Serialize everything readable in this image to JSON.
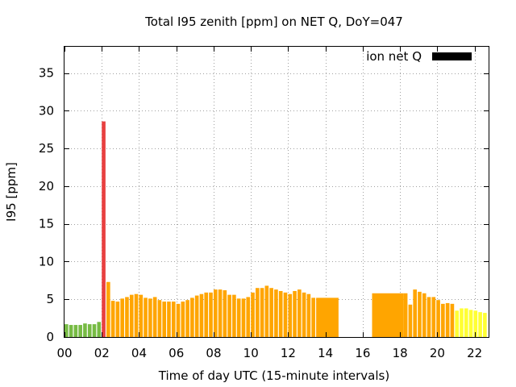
{
  "chart_data": {
    "type": "bar",
    "title": "Total I95 zenith [ppm] on NET Q, DoY=047",
    "xlabel": "Time of day UTC (15-minute intervals)",
    "ylabel": "I95 [ppm]",
    "xlim": [
      0,
      22.75
    ],
    "ylim": [
      0,
      38.5
    ],
    "x_ticks": [
      {
        "v": 0,
        "label": "00"
      },
      {
        "v": 2,
        "label": "02"
      },
      {
        "v": 4,
        "label": "04"
      },
      {
        "v": 6,
        "label": "06"
      },
      {
        "v": 8,
        "label": "08"
      },
      {
        "v": 10,
        "label": "10"
      },
      {
        "v": 12,
        "label": "12"
      },
      {
        "v": 14,
        "label": "14"
      },
      {
        "v": 16,
        "label": "16"
      },
      {
        "v": 18,
        "label": "18"
      },
      {
        "v": 20,
        "label": "20"
      },
      {
        "v": 22,
        "label": "22"
      }
    ],
    "y_ticks": [
      {
        "v": 0,
        "label": "0"
      },
      {
        "v": 5,
        "label": "5"
      },
      {
        "v": 10,
        "label": "10"
      },
      {
        "v": 15,
        "label": "15"
      },
      {
        "v": 20,
        "label": "20"
      },
      {
        "v": 25,
        "label": "25"
      },
      {
        "v": 30,
        "label": "30"
      },
      {
        "v": 35,
        "label": "35"
      }
    ],
    "grid": true,
    "legend": {
      "label": "ion net Q",
      "color": "#000000",
      "placement": "top-right"
    },
    "colors": {
      "green": "#77bb44",
      "red": "#e84040",
      "orange": "#ffa500",
      "yellow": "#ffff33"
    },
    "bar_width": 0.2,
    "bars": [
      {
        "x": 0.0,
        "y": 1.7,
        "c": "green"
      },
      {
        "x": 0.25,
        "y": 1.6,
        "c": "green"
      },
      {
        "x": 0.5,
        "y": 1.6,
        "c": "green"
      },
      {
        "x": 0.75,
        "y": 1.6,
        "c": "green"
      },
      {
        "x": 1.0,
        "y": 1.8,
        "c": "green"
      },
      {
        "x": 1.25,
        "y": 1.7,
        "c": "green"
      },
      {
        "x": 1.5,
        "y": 1.7,
        "c": "green"
      },
      {
        "x": 1.75,
        "y": 2.0,
        "c": "green"
      },
      {
        "x": 2.0,
        "y": 28.6,
        "c": "red"
      },
      {
        "x": 2.25,
        "y": 7.3,
        "c": "orange"
      },
      {
        "x": 2.5,
        "y": 4.8,
        "c": "orange"
      },
      {
        "x": 2.75,
        "y": 4.7,
        "c": "orange"
      },
      {
        "x": 3.0,
        "y": 5.1,
        "c": "orange"
      },
      {
        "x": 3.25,
        "y": 5.3,
        "c": "orange"
      },
      {
        "x": 3.5,
        "y": 5.6,
        "c": "orange"
      },
      {
        "x": 3.75,
        "y": 5.7,
        "c": "orange"
      },
      {
        "x": 4.0,
        "y": 5.6,
        "c": "orange"
      },
      {
        "x": 4.25,
        "y": 5.2,
        "c": "orange"
      },
      {
        "x": 4.5,
        "y": 5.1,
        "c": "orange"
      },
      {
        "x": 4.75,
        "y": 5.3,
        "c": "orange"
      },
      {
        "x": 5.0,
        "y": 4.9,
        "c": "orange"
      },
      {
        "x": 5.25,
        "y": 4.7,
        "c": "orange"
      },
      {
        "x": 5.5,
        "y": 4.7,
        "c": "orange"
      },
      {
        "x": 5.75,
        "y": 4.7,
        "c": "orange"
      },
      {
        "x": 6.0,
        "y": 4.4,
        "c": "orange"
      },
      {
        "x": 6.25,
        "y": 4.7,
        "c": "orange"
      },
      {
        "x": 6.5,
        "y": 4.9,
        "c": "orange"
      },
      {
        "x": 6.75,
        "y": 5.2,
        "c": "orange"
      },
      {
        "x": 7.0,
        "y": 5.5,
        "c": "orange"
      },
      {
        "x": 7.25,
        "y": 5.7,
        "c": "orange"
      },
      {
        "x": 7.5,
        "y": 5.9,
        "c": "orange"
      },
      {
        "x": 7.75,
        "y": 5.9,
        "c": "orange"
      },
      {
        "x": 8.0,
        "y": 6.3,
        "c": "orange"
      },
      {
        "x": 8.25,
        "y": 6.3,
        "c": "orange"
      },
      {
        "x": 8.5,
        "y": 6.2,
        "c": "orange"
      },
      {
        "x": 8.75,
        "y": 5.6,
        "c": "orange"
      },
      {
        "x": 9.0,
        "y": 5.6,
        "c": "orange"
      },
      {
        "x": 9.25,
        "y": 5.1,
        "c": "orange"
      },
      {
        "x": 9.5,
        "y": 5.1,
        "c": "orange"
      },
      {
        "x": 9.75,
        "y": 5.3,
        "c": "orange"
      },
      {
        "x": 10.0,
        "y": 5.9,
        "c": "orange"
      },
      {
        "x": 10.25,
        "y": 6.5,
        "c": "orange"
      },
      {
        "x": 10.5,
        "y": 6.5,
        "c": "orange"
      },
      {
        "x": 10.75,
        "y": 6.8,
        "c": "orange"
      },
      {
        "x": 11.0,
        "y": 6.5,
        "c": "orange"
      },
      {
        "x": 11.25,
        "y": 6.3,
        "c": "orange"
      },
      {
        "x": 11.5,
        "y": 6.1,
        "c": "orange"
      },
      {
        "x": 11.75,
        "y": 5.9,
        "c": "orange"
      },
      {
        "x": 12.0,
        "y": 5.7,
        "c": "orange"
      },
      {
        "x": 12.25,
        "y": 6.1,
        "c": "orange"
      },
      {
        "x": 12.5,
        "y": 6.3,
        "c": "orange"
      },
      {
        "x": 12.75,
        "y": 5.9,
        "c": "orange"
      },
      {
        "x": 13.0,
        "y": 5.7,
        "c": "orange"
      },
      {
        "x": 13.25,
        "y": 5.2,
        "c": "orange"
      },
      {
        "x": 13.5,
        "y": 5.2,
        "c": "orange",
        "w": 1.2
      },
      {
        "x": 16.5,
        "y": 5.8,
        "c": "orange",
        "w": 1.7
      },
      {
        "x": 18.2,
        "y": 5.8,
        "c": "orange"
      },
      {
        "x": 18.45,
        "y": 4.3,
        "c": "orange"
      },
      {
        "x": 18.7,
        "y": 6.3,
        "c": "orange"
      },
      {
        "x": 18.95,
        "y": 6.0,
        "c": "orange"
      },
      {
        "x": 19.2,
        "y": 5.8,
        "c": "orange"
      },
      {
        "x": 19.45,
        "y": 5.3,
        "c": "orange"
      },
      {
        "x": 19.7,
        "y": 5.3,
        "c": "orange"
      },
      {
        "x": 19.95,
        "y": 4.9,
        "c": "orange"
      },
      {
        "x": 20.2,
        "y": 4.4,
        "c": "orange"
      },
      {
        "x": 20.45,
        "y": 4.5,
        "c": "orange"
      },
      {
        "x": 20.7,
        "y": 4.4,
        "c": "orange"
      },
      {
        "x": 20.95,
        "y": 3.5,
        "c": "yellow"
      },
      {
        "x": 21.2,
        "y": 3.8,
        "c": "yellow"
      },
      {
        "x": 21.45,
        "y": 3.8,
        "c": "yellow"
      },
      {
        "x": 21.7,
        "y": 3.6,
        "c": "yellow"
      },
      {
        "x": 21.95,
        "y": 3.5,
        "c": "yellow"
      },
      {
        "x": 22.2,
        "y": 3.3,
        "c": "yellow"
      },
      {
        "x": 22.45,
        "y": 3.2,
        "c": "yellow"
      }
    ]
  }
}
